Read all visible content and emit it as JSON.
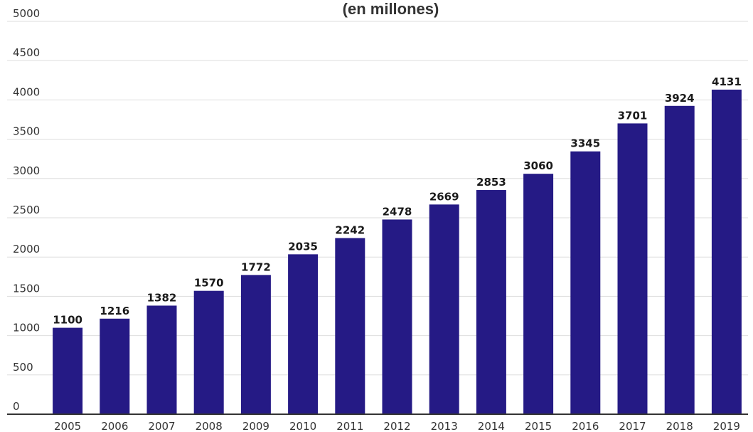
{
  "chart_data": {
    "type": "bar",
    "title": "(en millones)",
    "categories": [
      "2005",
      "2006",
      "2007",
      "2008",
      "2009",
      "2010",
      "2011",
      "2012",
      "2013",
      "2014",
      "2015",
      "2016",
      "2017",
      "2018",
      "2019"
    ],
    "values": [
      1100,
      1216,
      1382,
      1570,
      1772,
      2035,
      2242,
      2478,
      2669,
      2853,
      3060,
      3345,
      3701,
      3924,
      4131
    ],
    "data_labels": [
      "1100",
      "1216",
      "1382",
      "1570",
      "1772",
      "2035",
      "2242",
      "2478",
      "2669",
      "2853",
      "3060",
      "3345",
      "3701",
      "3924",
      "4131"
    ],
    "yticks": [
      0,
      500,
      1000,
      1500,
      2000,
      2500,
      3000,
      3500,
      4000,
      4500,
      5000
    ],
    "ytick_labels": [
      "0",
      "500",
      "1000",
      "1500",
      "2000",
      "2500",
      "3000",
      "3500",
      "4000",
      "4500",
      "5000"
    ],
    "ylim": [
      0,
      5000
    ],
    "grid": true,
    "bar_color": "#251a85",
    "grid_color": "#dddddd",
    "axis_color": "#333333"
  }
}
